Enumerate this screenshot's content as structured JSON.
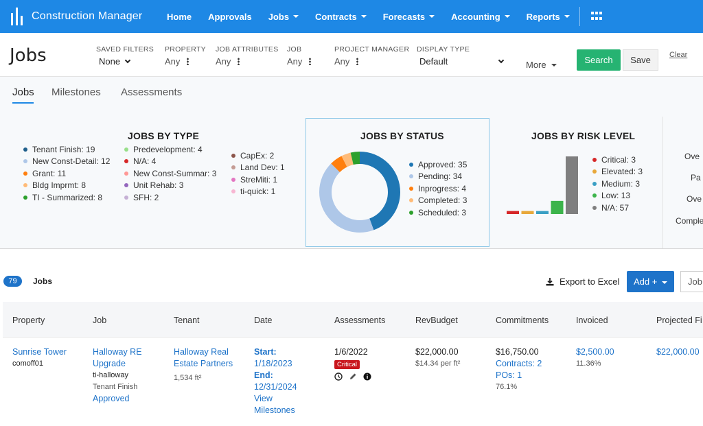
{
  "nav": {
    "brand": "Construction Manager",
    "items": [
      {
        "label": "Home",
        "caret": false
      },
      {
        "label": "Approvals",
        "caret": false
      },
      {
        "label": "Jobs",
        "caret": true
      },
      {
        "label": "Contracts",
        "caret": true
      },
      {
        "label": "Forecasts",
        "caret": true
      },
      {
        "label": "Accounting",
        "caret": true
      },
      {
        "label": "Reports",
        "caret": true
      }
    ]
  },
  "filters": {
    "page_title": "Jobs",
    "saved_filters": {
      "label": "SAVED FILTERS",
      "value": "None"
    },
    "property": {
      "label": "PROPERTY",
      "value": "Any"
    },
    "job_attributes": {
      "label": "JOB ATTRIBUTES",
      "value": "Any"
    },
    "job": {
      "label": "JOB",
      "value": "Any"
    },
    "project_manager": {
      "label": "PROJECT MANAGER",
      "value": "Any"
    },
    "display_type": {
      "label": "DISPLAY TYPE",
      "value": "Default"
    },
    "more": "More",
    "search": "Search",
    "save": "Save",
    "clear": "Clear"
  },
  "tabs": [
    "Jobs",
    "Milestones",
    "Assessments"
  ],
  "jobs_by_type": {
    "title": "JOBS BY TYPE",
    "columns": [
      [
        {
          "label": "Tenant Finish: 19",
          "color": "#1f5f8b"
        },
        {
          "label": "New Const-Detail: 12",
          "color": "#aec7e8"
        },
        {
          "label": "Grant: 11",
          "color": "#ff7f0e"
        },
        {
          "label": "Bldg Imprmt: 8",
          "color": "#ffbb78"
        },
        {
          "label": "TI - Summarized: 8",
          "color": "#2ca02c"
        }
      ],
      [
        {
          "label": "Predevelopment: 4",
          "color": "#98df8a"
        },
        {
          "label": "N/A: 4",
          "color": "#d62728"
        },
        {
          "label": "New Const-Summar: 3",
          "color": "#ff9896"
        },
        {
          "label": "Unit Rehab: 3",
          "color": "#9467bd"
        },
        {
          "label": "SFH: 2",
          "color": "#c5b0d5"
        }
      ],
      [
        {
          "label": "CapEx: 2",
          "color": "#8c564b"
        },
        {
          "label": "Land Dev: 1",
          "color": "#c49c94"
        },
        {
          "label": "StreMiti: 1",
          "color": "#e377c2"
        },
        {
          "label": "ti-quick: 1",
          "color": "#f7b6d2"
        }
      ]
    ]
  },
  "jobs_by_status": {
    "title": "JOBS BY STATUS",
    "items": [
      {
        "label": "Approved: 35",
        "value": 35,
        "color": "#1f77b4"
      },
      {
        "label": "Pending: 34",
        "value": 34,
        "color": "#aec7e8"
      },
      {
        "label": "Inprogress: 4",
        "value": 4,
        "color": "#ff7f0e"
      },
      {
        "label": "Completed: 3",
        "value": 3,
        "color": "#ffbb78"
      },
      {
        "label": "Scheduled: 3",
        "value": 3,
        "color": "#2ca02c"
      }
    ]
  },
  "jobs_by_risk": {
    "title": "JOBS BY RISK LEVEL",
    "items": [
      {
        "label": "Critical: 3",
        "value": 3,
        "color": "#d62728"
      },
      {
        "label": "Elevated: 3",
        "value": 3,
        "color": "#e8a83a"
      },
      {
        "label": "Medium: 3",
        "value": 3,
        "color": "#3a9fc4"
      },
      {
        "label": "Low: 13",
        "value": 13,
        "color": "#3cb44b"
      },
      {
        "label": "N/A: 57",
        "value": 57,
        "color": "#7f7f7f"
      }
    ]
  },
  "right_cut": [
    "Ove",
    "Pa",
    "Ove",
    "Comple"
  ],
  "jobs_bar": {
    "count": "79",
    "label": "Jobs",
    "export": "Export to Excel",
    "add": "Add +",
    "job_input": "Job"
  },
  "table": {
    "headers": [
      "Property",
      "Job",
      "Tenant",
      "Date",
      "Assessments",
      "RevBudget",
      "Commitments",
      "Invoiced",
      "Projected Fi"
    ],
    "row": {
      "property": "Sunrise Tower",
      "property_code": "comoff01",
      "job_line1": "Halloway RE",
      "job_line2": "Upgrade",
      "job_code": "ti-halloway",
      "job_type": "Tenant Finish",
      "job_status": "Approved",
      "tenant_line1": "Halloway Real",
      "tenant_line2": "Estate Partners",
      "tenant_area": "1,534 ft²",
      "start_label": "Start:",
      "start_date": "1/18/2023",
      "end_label": "End:",
      "end_date": "12/31/2024",
      "view_line1": "View",
      "view_line2": "Milestones",
      "assessment_date": "1/6/2022",
      "assessment_badge": "Critical",
      "rev_budget": "$22,000.00",
      "rev_per_ft": "$14.34 per ft²",
      "commitments": "$16,750.00",
      "contracts": "Contracts: 2",
      "pos": "POs: 1",
      "commit_pct": "76.1%",
      "invoiced": "$2,500.00",
      "invoiced_pct": "11.36%",
      "projected": "$22,000.00"
    }
  }
}
